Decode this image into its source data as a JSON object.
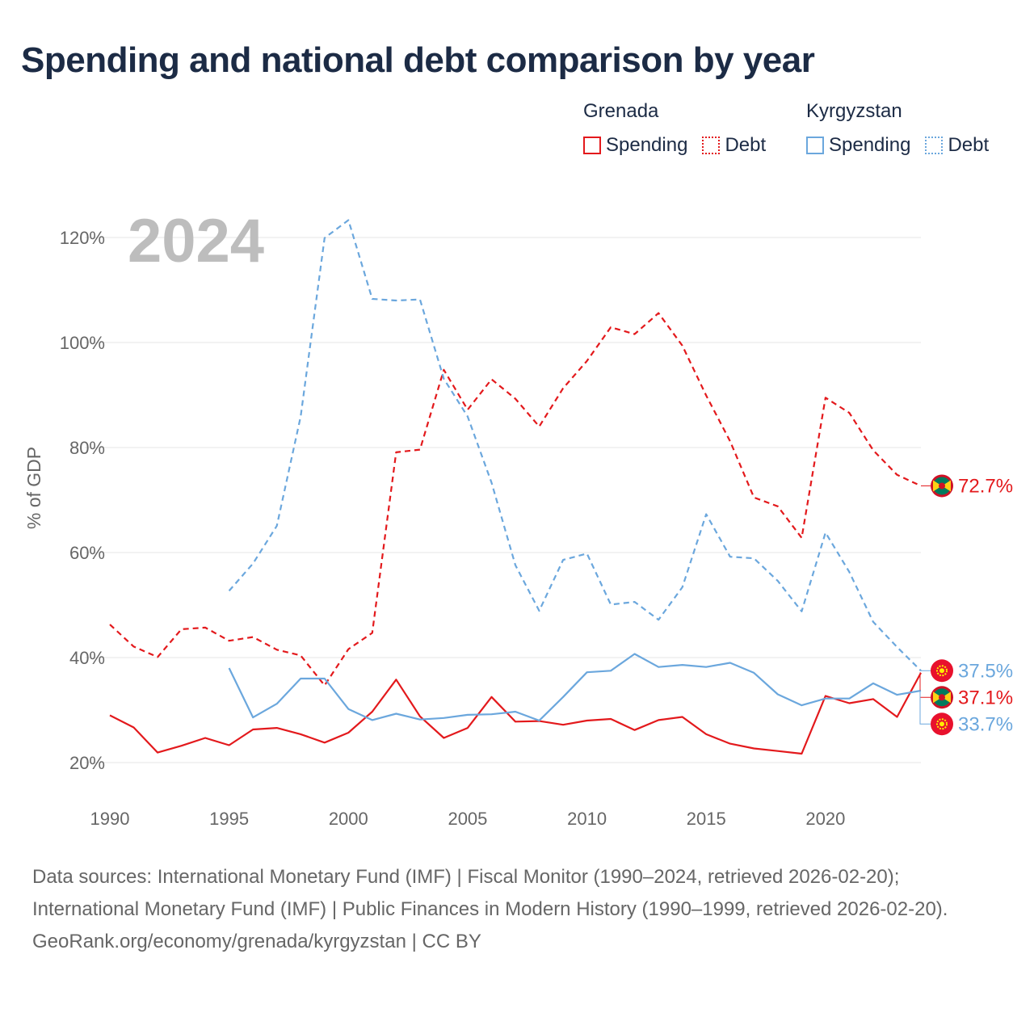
{
  "chart_data": {
    "type": "line",
    "title": "Spending and national debt comparison by year",
    "year_label": "2024",
    "ylabel": "% of GDP",
    "ylim": [
      20,
      125
    ],
    "xlim": [
      1990,
      2024
    ],
    "y_ticks": [
      20,
      40,
      60,
      80,
      100,
      120
    ],
    "y_tick_labels": [
      "20%",
      "40%",
      "60%",
      "80%",
      "100%",
      "120%"
    ],
    "x_ticks": [
      1990,
      1995,
      2000,
      2005,
      2010,
      2015,
      2020
    ],
    "x_tick_labels": [
      "1990",
      "1995",
      "2000",
      "2005",
      "2010",
      "2015",
      "2020"
    ],
    "legend": {
      "groups": [
        {
          "country": "Grenada",
          "items": [
            "Spending",
            "Debt"
          ]
        },
        {
          "country": "Kyrgyzstan",
          "items": [
            "Spending",
            "Debt"
          ]
        }
      ]
    },
    "series": [
      {
        "name": "Grenada Debt",
        "color": "#e3191c",
        "dashed": true,
        "start_year": 1990,
        "values": [
          46.3,
          42.1,
          40.1,
          45.4,
          45.7,
          43.2,
          43.9,
          41.5,
          40.4,
          34.7,
          41.6,
          44.7,
          79.1,
          79.6,
          94.8,
          87.2,
          93.0,
          89.3,
          84.0,
          91.3,
          96.5,
          102.9,
          101.6,
          105.6,
          99.4,
          89.9,
          81.2,
          70.5,
          68.8,
          62.8,
          89.5,
          86.6,
          79.5,
          74.8,
          72.7
        ],
        "end_label": "72.7%"
      },
      {
        "name": "Grenada Spending",
        "color": "#e3191c",
        "dashed": false,
        "start_year": 1990,
        "values": [
          29.0,
          26.7,
          21.9,
          23.2,
          24.7,
          23.3,
          26.3,
          26.6,
          25.4,
          23.8,
          25.7,
          29.7,
          35.8,
          28.8,
          24.7,
          26.6,
          32.5,
          27.8,
          27.9,
          27.2,
          28.0,
          28.3,
          26.2,
          28.1,
          28.7,
          25.4,
          23.6,
          22.7,
          22.2,
          21.7,
          32.7,
          31.3,
          32.1,
          28.7,
          37.1
        ],
        "end_label": "37.1%"
      },
      {
        "name": "Kyrgyzstan Debt",
        "color": "#6ba7dd",
        "dashed": true,
        "start_year": 1995,
        "values": [
          52.7,
          57.9,
          65.1,
          85.9,
          119.9,
          123.3,
          108.3,
          108.0,
          108.2,
          93.1,
          85.9,
          73.3,
          57.6,
          48.9,
          58.6,
          59.8,
          50.1,
          50.6,
          47.2,
          53.4,
          67.3,
          59.2,
          58.9,
          54.6,
          48.8,
          63.8,
          56.3,
          46.8,
          42.0,
          37.5
        ],
        "end_label": "37.5%"
      },
      {
        "name": "Kyrgyzstan Spending",
        "color": "#6ba7dd",
        "dashed": false,
        "start_year": 1995,
        "values": [
          38.0,
          28.6,
          31.2,
          36.0,
          36.0,
          30.2,
          28.1,
          29.3,
          28.2,
          28.5,
          29.1,
          29.2,
          29.7,
          28.0,
          32.5,
          37.2,
          37.5,
          40.7,
          38.2,
          38.6,
          38.2,
          39.0,
          37.1,
          33.0,
          30.9,
          32.2,
          32.2,
          35.1,
          32.9,
          33.7
        ],
        "end_label": "33.7%"
      }
    ]
  },
  "footer": {
    "source_line": "Data sources: International Monetary Fund (IMF) | Fiscal Monitor (1990–2024, retrieved 2026-02-20); International Monetary Fund (IMF) | Public Finances in Modern History (1990–1999, retrieved 2026-02-20).",
    "credit_line": "GeoRank.org/economy/grenada/kyrgyzstan | CC BY"
  }
}
